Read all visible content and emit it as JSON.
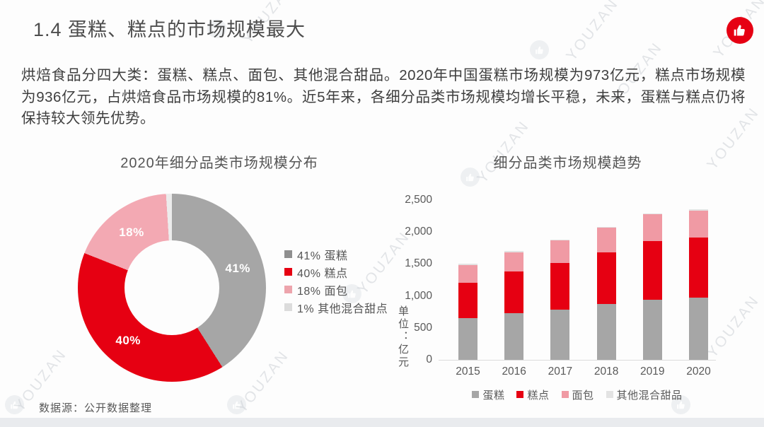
{
  "page": {
    "title": "1.4 蛋糕、糕点的市场规模最大",
    "body_text": "烘焙食品分四大类：蛋糕、糕点、面包、其他混合甜品。2020年中国蛋糕市场规模为973亿元，糕点市场规模为936亿元，占烘焙食品市场规模的81%。近5年来，各细分品类市场规模均增长平稳，未来，蛋糕与糕点仍将保持较大领先优势。",
    "source_note": "数据源：公开数据整理",
    "watermark_text": "YOUZAN",
    "like_icon": "thumbs-up-icon"
  },
  "colors": {
    "accent_red": "#e60012",
    "gray_series": "#a6a6a6",
    "pink_series": "#f09aa4",
    "light_series": "#e6e6e6",
    "title_text": "#4d4d4d",
    "body_text": "#3e3e3e",
    "axis_text": "#595959",
    "bottom_strip": "#e9ebee"
  },
  "chart_data": [
    {
      "type": "pie",
      "donut": true,
      "title": "2020年细分品类市场规模分布",
      "labels": [
        "蛋糕",
        "糕点",
        "面包",
        "其他混合甜点"
      ],
      "values": [
        41,
        40,
        18,
        1
      ],
      "unit": "%",
      "colors": [
        "#a6a6a6",
        "#e60012",
        "#f3a9b3",
        "#ececec"
      ],
      "slice_label_min_pct": 5,
      "slice_labels": [
        "41%",
        "40%",
        "18%"
      ],
      "legend_position": "right",
      "legend": [
        "41% 蛋糕",
        "40% 糕点",
        "18% 面包",
        "1% 其他混合甜点"
      ],
      "legend_colors": [
        "#8f8f8f",
        "#e60012",
        "#eda4ac",
        "#dcdcdc"
      ]
    },
    {
      "type": "bar",
      "stacked": true,
      "title": "细分品类市场规模趋势",
      "categories": [
        "2015",
        "2016",
        "2017",
        "2018",
        "2019",
        "2020"
      ],
      "series": [
        {
          "name": "蛋糕",
          "color": "#a6a6a6",
          "values": [
            650,
            735,
            790,
            875,
            945,
            973
          ]
        },
        {
          "name": "糕点",
          "color": "#e60012",
          "values": [
            560,
            650,
            725,
            810,
            915,
            936
          ]
        },
        {
          "name": "面包",
          "color": "#f09aa4",
          "values": [
            275,
            300,
            355,
            385,
            415,
            420
          ]
        },
        {
          "name": "其他混合甜品",
          "color": "#e3e3e3",
          "values": [
            15,
            15,
            15,
            15,
            15,
            25
          ]
        }
      ],
      "ylabel": "单位：亿元",
      "ylim": [
        0,
        2500
      ],
      "yticks": [
        "0",
        "500",
        "1,000",
        "1,500",
        "2,000",
        "2,500"
      ],
      "grid": false,
      "legend_position": "bottom"
    }
  ]
}
